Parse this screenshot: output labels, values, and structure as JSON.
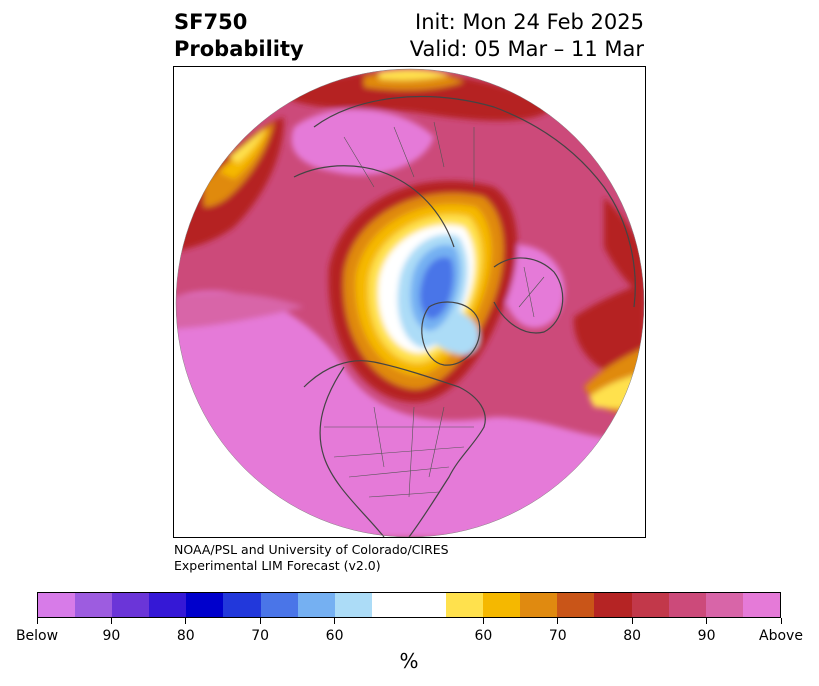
{
  "header": {
    "variable": "SF750",
    "product": "Probability",
    "init": "Init: Mon 24 Feb 2025",
    "valid": "Valid: 05 Mar – 11 Mar"
  },
  "credit": {
    "line1": "NOAA/PSL and University of Colorado/CIRES",
    "line2": "Experimental LIM Forecast (v2.0)"
  },
  "colorbar": {
    "unit": "%",
    "colors": [
      "#d77be8",
      "#9d5ce0",
      "#6b35d8",
      "#3518d6",
      "#0000cc",
      "#2238db",
      "#4a75e8",
      "#75b0f2",
      "#acdcf7",
      "#ffffff",
      "#ffffff",
      "#ffe14d",
      "#f5b800",
      "#e08a10",
      "#c95518",
      "#b52424",
      "#c2384a",
      "#cc4a7a",
      "#d865a8",
      "#e57ad8"
    ],
    "tick_labels": [
      "Below",
      "90",
      "80",
      "70",
      "60",
      "60",
      "70",
      "80",
      "90",
      "Above"
    ]
  },
  "map": {
    "projection": "north-polar-stereographic",
    "field_legend_categories": [
      "below-normal-blue",
      "near-normal-white",
      "above-normal-warm"
    ]
  }
}
